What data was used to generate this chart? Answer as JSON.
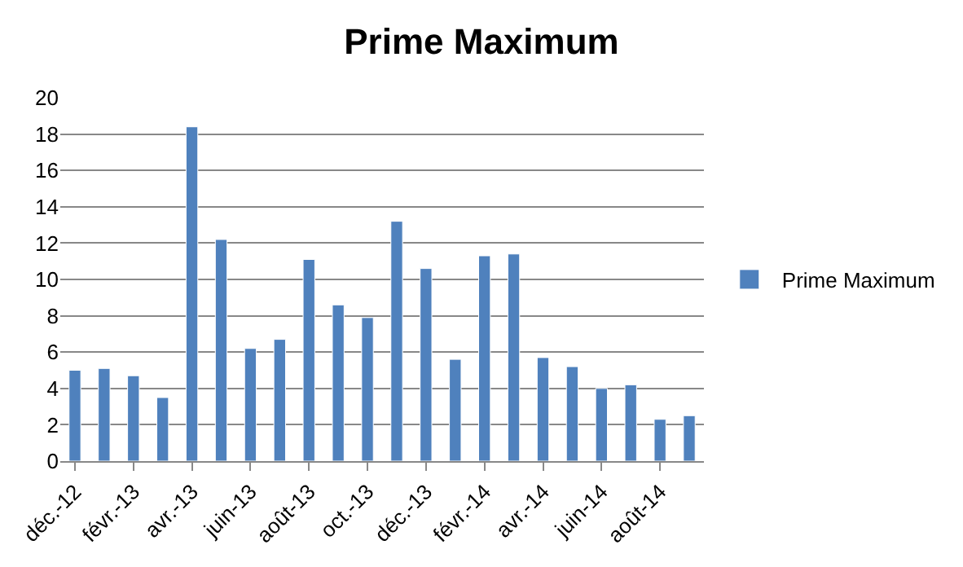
{
  "chart_data": {
    "type": "bar",
    "title": "Prime Maximum",
    "categories": [
      "déc.-12",
      null,
      "févr.-13",
      null,
      "avr.-13",
      null,
      "juin-13",
      null,
      "août-13",
      null,
      "oct.-13",
      null,
      "déc.-13",
      null,
      "févr.-14",
      null,
      "avr.-14",
      null,
      "juin-14",
      null,
      "août-14",
      null
    ],
    "series": [
      {
        "name": "Prime Maximum",
        "color": "#4f81bd",
        "values": [
          5.0,
          5.1,
          4.7,
          3.5,
          18.4,
          12.2,
          6.2,
          6.7,
          11.1,
          8.6,
          7.9,
          13.2,
          10.6,
          5.6,
          11.3,
          11.4,
          5.7,
          5.2,
          4.0,
          4.2,
          2.3,
          2.5
        ]
      }
    ],
    "ylim": [
      0,
      20
    ],
    "yticks": [
      0,
      2,
      4,
      6,
      8,
      10,
      12,
      14,
      16,
      18,
      20
    ],
    "grid": "y",
    "legend": "right"
  }
}
